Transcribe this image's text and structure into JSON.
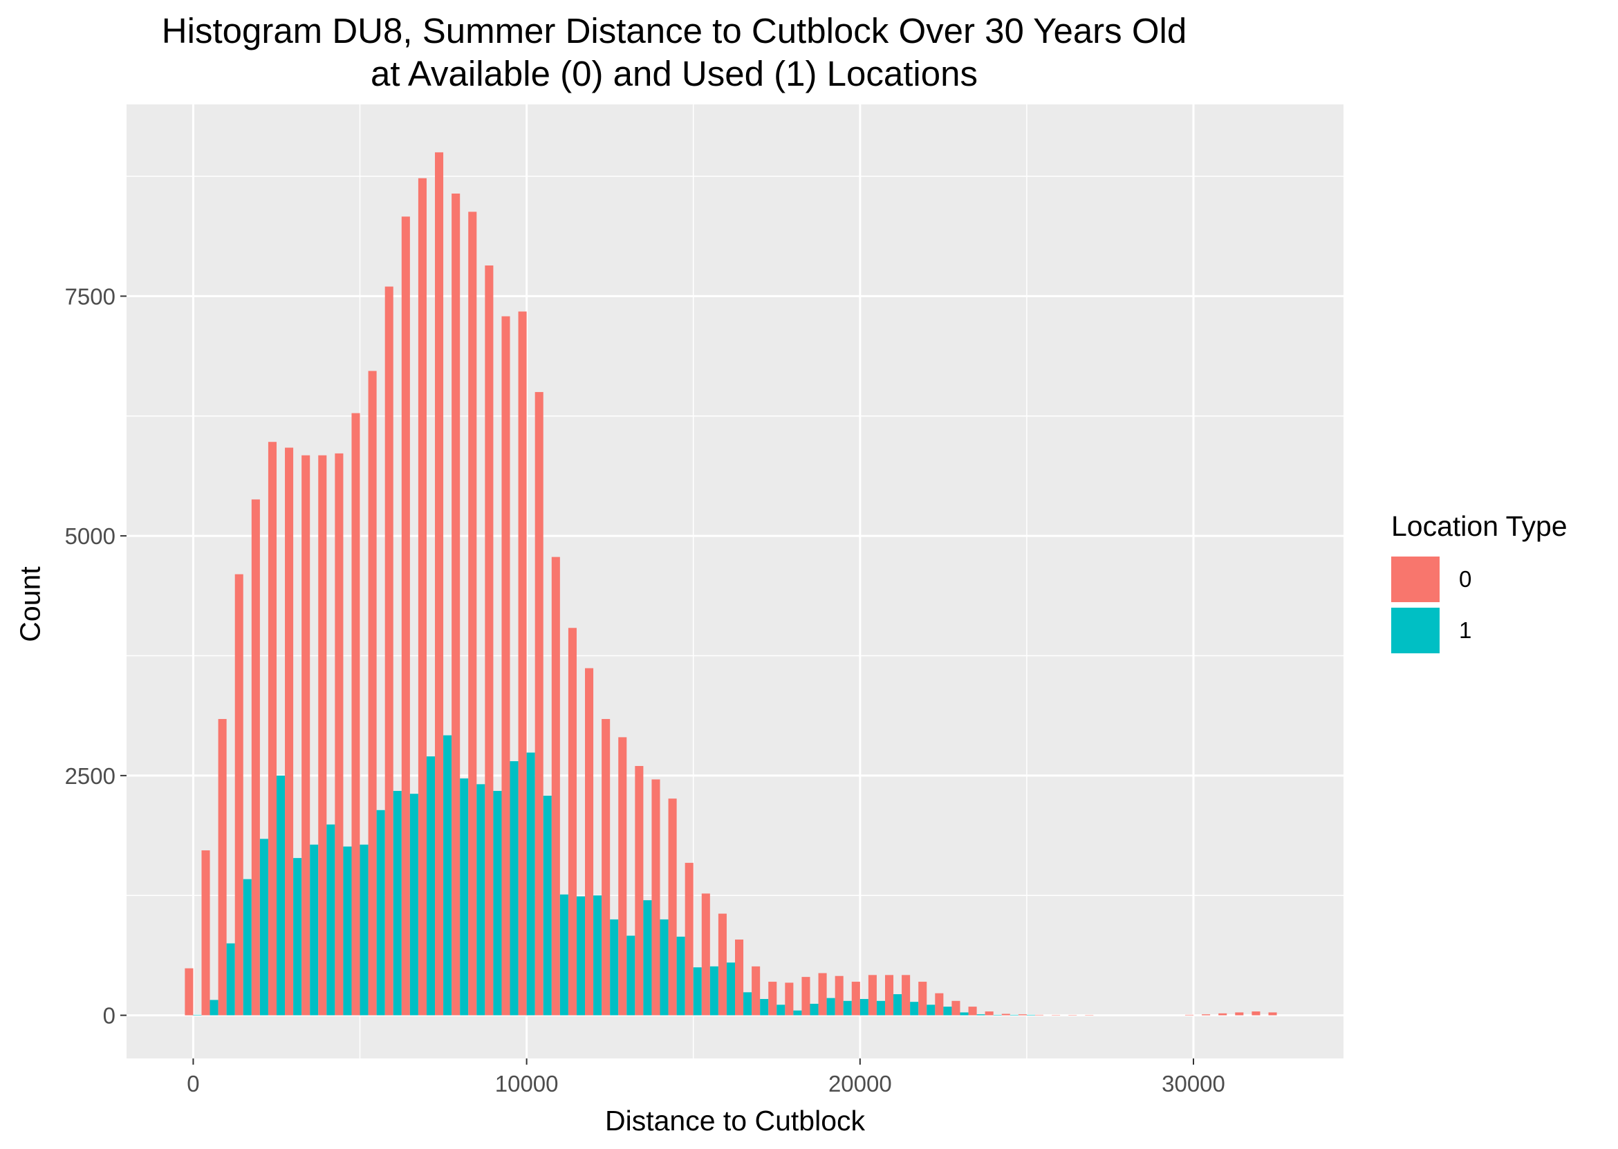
{
  "chart_data": {
    "type": "bar",
    "title_line1": "Histogram DU8, Summer Distance to Cutblock Over 30 Years Old",
    "title_line2": "at Available (0) and Used (1) Locations",
    "xlabel": "Distance to Cutblock",
    "ylabel": "Count",
    "xlim": [
      -2000,
      34500
    ],
    "ylim": [
      -450,
      9500
    ],
    "x_ticks": [
      0,
      10000,
      20000,
      30000
    ],
    "y_ticks": [
      0,
      2500,
      5000,
      7500
    ],
    "bin_width": 500,
    "grid": true,
    "legend": {
      "title": "Location Type",
      "position": "right",
      "items": [
        {
          "label": "0",
          "color": "#F8766D"
        },
        {
          "label": "1",
          "color": "#00BFC4"
        }
      ]
    },
    "x": [
      0,
      500,
      1000,
      1500,
      2000,
      2500,
      3000,
      3500,
      4000,
      4500,
      5000,
      5500,
      6000,
      6500,
      7000,
      7500,
      8000,
      8500,
      9000,
      9500,
      10000,
      10500,
      11000,
      11500,
      12000,
      12500,
      13000,
      13500,
      14000,
      14500,
      15000,
      15500,
      16000,
      16500,
      17000,
      17500,
      18000,
      18500,
      19000,
      19500,
      20000,
      20500,
      21000,
      21500,
      22000,
      22500,
      23000,
      23500,
      24000,
      24500,
      25000,
      25500,
      26000,
      26500,
      27000,
      27500,
      28000,
      28500,
      29000,
      29500,
      30000,
      30500,
      31000,
      31500,
      32000,
      32500
    ],
    "series": [
      {
        "name": "0",
        "color": "#F8766D",
        "values": [
          490,
          1720,
          3090,
          4600,
          5380,
          5980,
          5920,
          5840,
          5840,
          5860,
          6280,
          6720,
          7600,
          8330,
          8730,
          9000,
          8570,
          8380,
          7820,
          7290,
          7340,
          6500,
          4780,
          4040,
          3620,
          3090,
          2900,
          2600,
          2460,
          2260,
          1590,
          1270,
          1060,
          790,
          510,
          350,
          340,
          400,
          440,
          410,
          350,
          420,
          420,
          420,
          350,
          230,
          150,
          90,
          40,
          15,
          10,
          5,
          3,
          2,
          2,
          0,
          0,
          0,
          0,
          0,
          5,
          10,
          20,
          30,
          40,
          30
        ]
      },
      {
        "name": "1",
        "color": "#00BFC4",
        "values": [
          5,
          160,
          750,
          1420,
          1840,
          2500,
          1640,
          1780,
          1990,
          1760,
          1780,
          2140,
          2340,
          2310,
          2700,
          2920,
          2470,
          2410,
          2340,
          2650,
          2740,
          2290,
          1260,
          1240,
          1250,
          1000,
          830,
          1200,
          1000,
          820,
          500,
          510,
          550,
          240,
          170,
          110,
          50,
          120,
          180,
          150,
          170,
          150,
          220,
          140,
          110,
          90,
          30,
          10,
          5,
          5,
          5,
          0,
          0,
          0,
          0,
          0,
          0,
          0,
          0,
          0,
          0,
          0,
          0,
          0,
          0,
          0
        ]
      }
    ]
  }
}
